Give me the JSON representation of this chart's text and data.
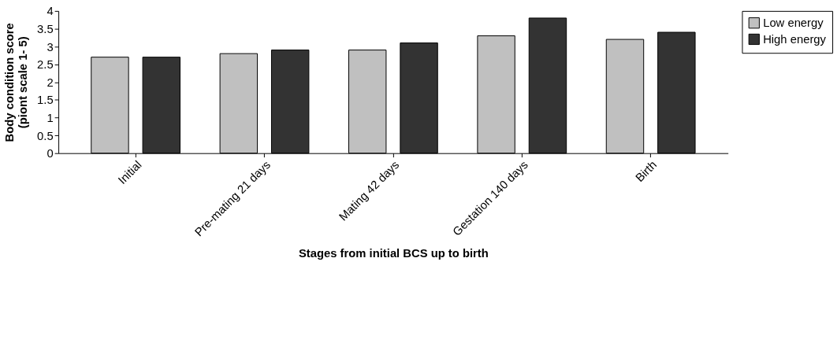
{
  "chart_data": {
    "type": "bar",
    "xlabel": "Stages from initial BCS up to birth",
    "ylabel": "Body condition score\n(piont scale 1- 5)",
    "categories": [
      "Initial",
      "Pre-mating 21 days",
      "Mating 42 days",
      "Gestation 140 days",
      "Birth"
    ],
    "series": [
      {
        "name": "Low energy",
        "color": "#c0c0c0",
        "values": [
          2.7,
          2.8,
          2.9,
          3.3,
          3.2
        ]
      },
      {
        "name": "High energy",
        "color": "#333333",
        "values": [
          2.7,
          2.9,
          3.1,
          3.8,
          3.4
        ]
      }
    ],
    "ylim": [
      0,
      4
    ],
    "yticks": [
      0,
      0.5,
      1,
      1.5,
      2,
      2.5,
      3,
      3.5,
      4
    ],
    "grid": false,
    "legend": "right"
  }
}
